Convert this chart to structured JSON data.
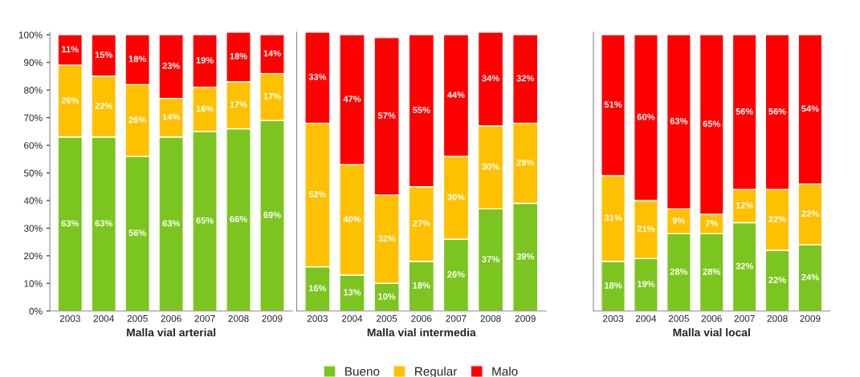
{
  "chart_data": [
    {
      "type": "bar",
      "stacked": true,
      "xlabel": "Malla vial arterial",
      "categories": [
        "2003",
        "2004",
        "2005",
        "2006",
        "2007",
        "2008",
        "2009"
      ],
      "ylim": [
        0,
        101
      ],
      "yticks": [
        {
          "value": 0,
          "label": "0%"
        },
        {
          "value": 10,
          "label": "10%"
        },
        {
          "value": 20,
          "label": "20%"
        },
        {
          "value": 30,
          "label": "30%"
        },
        {
          "value": 40,
          "label": "40%"
        },
        {
          "value": 50,
          "label": "50%"
        },
        {
          "value": 60,
          "label": "60%"
        },
        {
          "value": 70,
          "label": "70%"
        },
        {
          "value": 80,
          "label": "80%"
        },
        {
          "value": 90,
          "label": "90%"
        },
        {
          "value": 100,
          "label": "100%"
        }
      ],
      "series": [
        {
          "color": "#7cc520",
          "values": [
            63,
            63,
            56,
            63,
            65,
            66,
            69
          ],
          "value_labels": [
            "63%",
            "63%",
            "56%",
            "63%",
            "65%",
            "66%",
            "69%"
          ]
        },
        {
          "color": "#ffc000",
          "values": [
            26,
            22,
            26,
            14,
            16,
            17,
            17
          ],
          "value_labels": [
            "26%",
            "22%",
            "26%",
            "14%",
            "16%",
            "17%",
            "17%"
          ]
        },
        {
          "color": "#ff0000",
          "values": [
            11,
            15,
            18,
            23,
            19,
            18,
            14
          ],
          "value_labels": [
            "11%",
            "15%",
            "18%",
            "23%",
            "19%",
            "18%",
            "14%"
          ]
        }
      ]
    },
    {
      "type": "bar",
      "stacked": true,
      "xlabel": "Malla vial intermedia",
      "categories": [
        "2003",
        "2004",
        "2005",
        "2006",
        "2007",
        "2008",
        "2009"
      ],
      "ylim": [
        0,
        101
      ],
      "tick_labels": "x",
      "legend": "bottom",
      "series": [
        {
          "name": "Bueno",
          "color": "#7cc520",
          "values": [
            16,
            13,
            10,
            18,
            26,
            37,
            39
          ],
          "value_labels": [
            "16%",
            "13%",
            "10%",
            "18%",
            "26%",
            "37%",
            "39%"
          ]
        },
        {
          "name": "Regular",
          "color": "#ffc000",
          "values": [
            52,
            40,
            32,
            27,
            30,
            30,
            29
          ],
          "value_labels": [
            "52%",
            "40%",
            "32%",
            "27%",
            "30%",
            "30%",
            "29%"
          ]
        },
        {
          "name": "Malo",
          "color": "#ff0000",
          "values": [
            33,
            47,
            57,
            55,
            44,
            34,
            32
          ],
          "value_labels": [
            "33%",
            "47%",
            "57%",
            "55%",
            "44%",
            "34%",
            "32%"
          ]
        }
      ]
    },
    {
      "type": "bar",
      "stacked": true,
      "xlabel": "Malla vial local",
      "categories": [
        "2003",
        "2004",
        "2005",
        "2006",
        "2007",
        "2008",
        "2009"
      ],
      "ylim": [
        0,
        101
      ],
      "tick_labels": "x",
      "series": [
        {
          "color": "#7cc520",
          "values": [
            18,
            19,
            28,
            28,
            32,
            22,
            24
          ],
          "value_labels": [
            "18%",
            "19%",
            "28%",
            "28%",
            "32%",
            "22%",
            "24%"
          ]
        },
        {
          "color": "#ffc000",
          "values": [
            31,
            21,
            9,
            7,
            12,
            22,
            22
          ],
          "value_labels": [
            "31%",
            "21%",
            "9%",
            "7%",
            "12%",
            "22%",
            "22%"
          ]
        },
        {
          "color": "#ff0000",
          "values": [
            51,
            60,
            63,
            65,
            56,
            56,
            54
          ],
          "value_labels": [
            "51%",
            "60%",
            "63%",
            "65%",
            "56%",
            "56%",
            "54%"
          ]
        }
      ]
    }
  ]
}
